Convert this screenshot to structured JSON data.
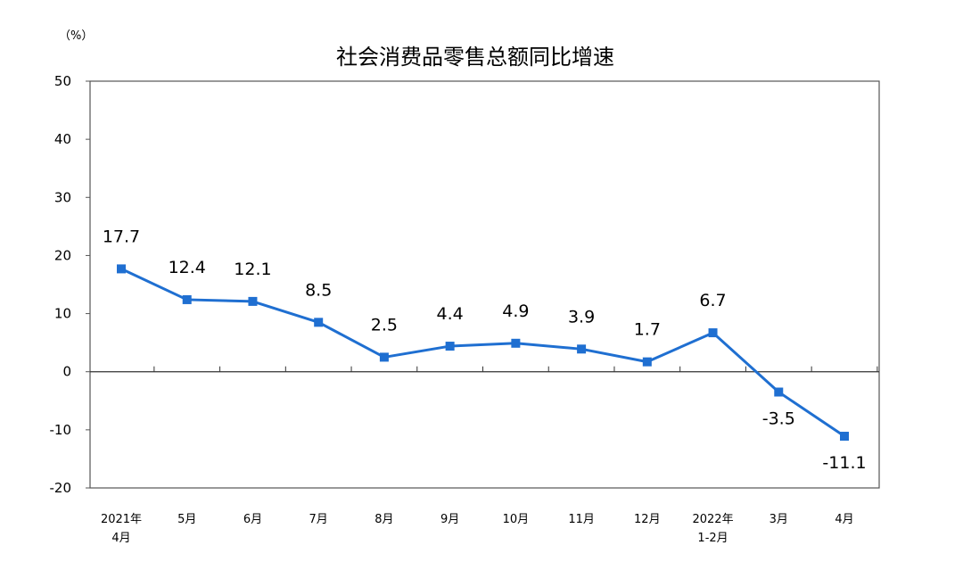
{
  "chart_data": {
    "type": "line",
    "title": "社会消费品零售总额同比增速",
    "unit_label": "（%）",
    "ylim": [
      -20,
      50
    ],
    "yticks": [
      "50",
      "40",
      "30",
      "20",
      "10",
      "0",
      "-10",
      "-20"
    ],
    "categories": [
      [
        "2021年",
        "4月"
      ],
      [
        "5月"
      ],
      [
        "6月"
      ],
      [
        "7月"
      ],
      [
        "8月"
      ],
      [
        "9月"
      ],
      [
        "10月"
      ],
      [
        "11月"
      ],
      [
        "12月"
      ],
      [
        "2022年",
        "1-2月"
      ],
      [
        "3月"
      ],
      [
        "4月"
      ]
    ],
    "series": [
      {
        "values": [
          17.7,
          12.4,
          12.1,
          8.5,
          2.5,
          4.4,
          4.9,
          3.9,
          1.7,
          6.7,
          -3.5,
          -11.1
        ],
        "labels": [
          "17.7",
          "12.4",
          "12.1",
          "8.5",
          "2.5",
          "4.4",
          "4.9",
          "3.9",
          "1.7",
          "6.7",
          "-3.5",
          "-11.1"
        ],
        "color": "#1f6fd1"
      }
    ],
    "grid": false,
    "legend": "none"
  }
}
